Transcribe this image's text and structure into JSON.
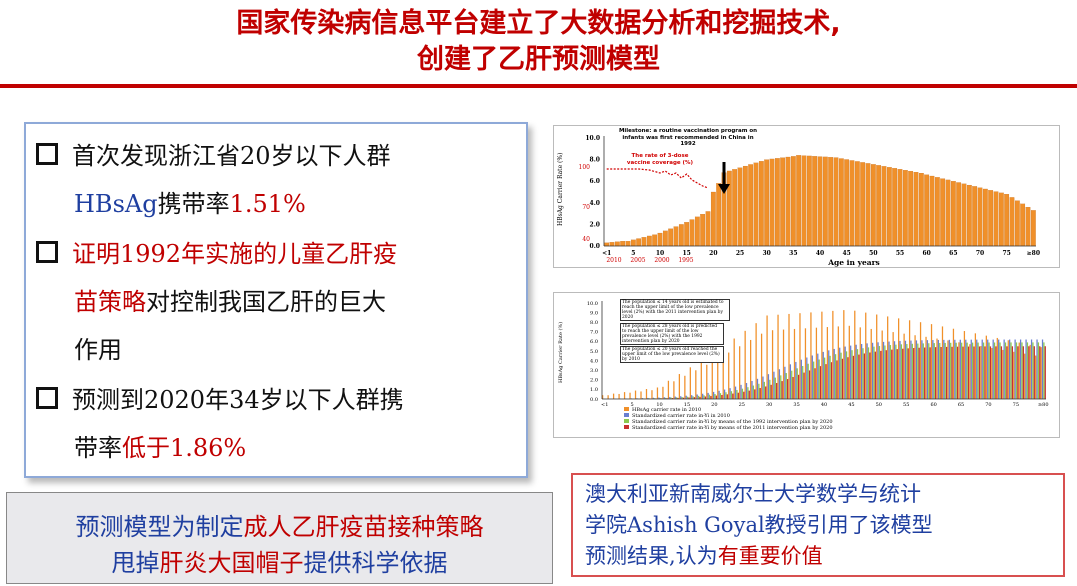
{
  "title": {
    "line1": "国家传染病信息平台建立了大数据分析和挖掘技术,",
    "line2": "创建了乙肝预测模型"
  },
  "bullets": {
    "b1": {
      "p1": "首次发现浙江省20岁以下人群",
      "p2_blue": "HBsAg",
      "p2_black": "携带率",
      "p2_red": "1.51%"
    },
    "b2": {
      "p1_red": "证明1992年实施的儿童乙肝疫",
      "p2_red": "苗策略",
      "p2_black": "对控制我国乙肝的巨大",
      "p3": "作用"
    },
    "b3": {
      "p1": "预测到2020年34岁以下人群携",
      "p2_black": "带率",
      "p2_red": "低于1.86%"
    }
  },
  "bottom_left": {
    "line1_blue": "预测模型为制定",
    "line1_red": "成人乙肝疫苗接种策略",
    "line2_blue1": "甩掉",
    "line2_red": "肝炎大国帽子",
    "line2_blue2": "提供科学依据"
  },
  "bottom_right": {
    "line1": "澳大利亚新南威尔士大学数学与统计",
    "line2": "学院Ashish Goyal教授引用了该模型",
    "line3_a": "预测结果,认为",
    "line3_red": "有重要价值"
  },
  "chart1_labels": {
    "ylabel": "HBsAg Carrier Rate (%)",
    "xlabel": "Age in years",
    "annot1": "Milestone: a routine vaccination program on infants was first recommended in China in 1992",
    "annot2": "The rate of 3-dose vaccine coverage (%)",
    "yticks": [
      "0.0",
      "2.0",
      "4.0",
      "6.0",
      "8.0",
      "10.0"
    ],
    "red_yticks": [
      "100",
      "70",
      "40"
    ],
    "xticks": [
      "<1",
      "5",
      "10",
      "15",
      "20",
      "25",
      "30",
      "35",
      "40",
      "45",
      "50",
      "55",
      "60",
      "65",
      "70",
      "75",
      "≥80"
    ],
    "years": [
      "2010",
      "2005",
      "2000",
      "1995"
    ]
  },
  "chart2_labels": {
    "ylabel": "HBsAg Carrier Rate (%)",
    "yticks": [
      "0.0",
      "1.0",
      "2.0",
      "3.0",
      "4.0",
      "5.0",
      "6.0",
      "7.0",
      "8.0",
      "9.0",
      "10.0"
    ],
    "xticks": [
      "<1",
      "5",
      "10",
      "15",
      "20",
      "25",
      "30",
      "35",
      "40",
      "45",
      "50",
      "55",
      "60",
      "65",
      "70",
      "75",
      "≥80"
    ],
    "ann1": "The population ≤ 14 years old is estimated to reach the upper limit of the low prevalence level (2%) with the 2011 intervention plan by 2020",
    "ann2": "The population ≤ 28 years old is predicted to reach the upper limit of the low prevalence level (2%) with the 1992 intervention plan by 2020",
    "ann3": "The population ≤ 20 years old reached the upper limit of the low prevalence level (2%) by 2010",
    "legend": [
      "HBsAg carrier rate in 2010",
      "Standardized carrier rate in-Yi in 2010",
      "Standardized carrier rate in-Yi by means of the 1992 intervention plan by 2020",
      "Standardized carrier rate in-Yi by means of the 2011 intervention plan by 2020"
    ]
  },
  "colors": {
    "title_red": "#c00000",
    "blue_text": "#1f3fa0",
    "bar_orange": "#f0902a"
  }
}
